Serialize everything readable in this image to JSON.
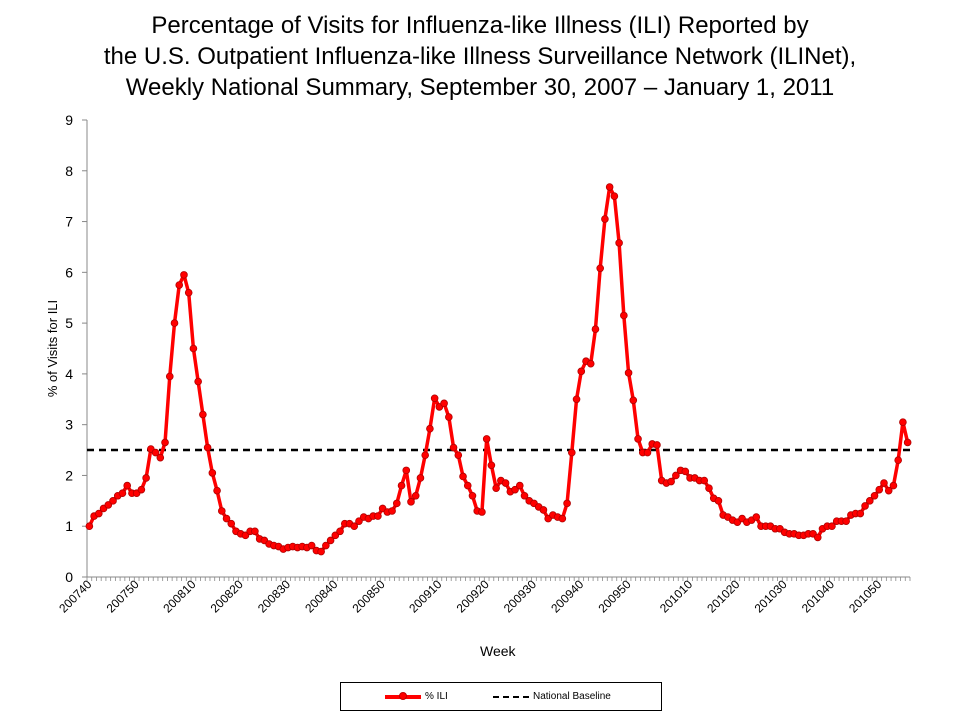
{
  "title_lines": [
    "Percentage of Visits for Influenza-like Illness (ILI) Reported by",
    "the U.S. Outpatient Influenza-like Illness Surveillance Network (ILINet),",
    "Weekly National Summary, September 30, 2007 – January 1, 2011"
  ],
  "colors": {
    "ili": "#ff0000",
    "baseline": "#000000"
  },
  "chart_data": {
    "type": "line",
    "xlabel": "Week",
    "ylabel": "% of Visits for ILI",
    "ylim": [
      0,
      9
    ],
    "yticks": [
      0,
      1,
      2,
      3,
      4,
      5,
      6,
      7,
      8,
      9
    ],
    "tick_labels": [
      "200740",
      "200750",
      "200810",
      "200820",
      "200830",
      "200840",
      "200850",
      "200910",
      "200920",
      "200930",
      "200940",
      "200950",
      "201010",
      "201020",
      "201030",
      "201040",
      "201050"
    ],
    "tick_label_indices": [
      0,
      10,
      22,
      32,
      42,
      52,
      62,
      74,
      84,
      94,
      104,
      114,
      127,
      137,
      147,
      157,
      167
    ],
    "grid": false,
    "legend_position": "bottom",
    "baseline": {
      "name": "National Baseline",
      "value": 2.5
    },
    "series": [
      {
        "name": "% ILI",
        "values": [
          1.0,
          1.2,
          1.25,
          1.35,
          1.42,
          1.5,
          1.6,
          1.65,
          1.8,
          1.65,
          1.65,
          1.72,
          1.95,
          2.52,
          2.45,
          2.35,
          2.65,
          3.95,
          5.0,
          5.75,
          5.95,
          5.6,
          4.5,
          3.85,
          3.2,
          2.55,
          2.05,
          1.7,
          1.3,
          1.15,
          1.05,
          0.9,
          0.85,
          0.82,
          0.9,
          0.9,
          0.75,
          0.72,
          0.65,
          0.62,
          0.6,
          0.55,
          0.58,
          0.6,
          0.58,
          0.6,
          0.58,
          0.62,
          0.52,
          0.5,
          0.62,
          0.72,
          0.82,
          0.9,
          1.05,
          1.05,
          1.0,
          1.1,
          1.18,
          1.15,
          1.2,
          1.2,
          1.35,
          1.28,
          1.3,
          1.45,
          1.8,
          2.1,
          1.48,
          1.6,
          1.95,
          2.4,
          2.92,
          3.52,
          3.35,
          3.42,
          3.15,
          2.55,
          2.4,
          1.98,
          1.8,
          1.6,
          1.3,
          1.28,
          2.72,
          2.2,
          1.75,
          1.9,
          1.85,
          1.68,
          1.72,
          1.8,
          1.6,
          1.5,
          1.45,
          1.38,
          1.32,
          1.15,
          1.22,
          1.18,
          1.15,
          1.45,
          2.45,
          3.5,
          4.05,
          4.25,
          4.2,
          4.88,
          6.08,
          7.05,
          7.68,
          7.5,
          6.58,
          5.15,
          4.02,
          3.48,
          2.72,
          2.45,
          2.45,
          2.62,
          2.6,
          1.9,
          1.85,
          1.88,
          2.0,
          2.1,
          2.08,
          1.95,
          1.95,
          1.9,
          1.9,
          1.75,
          1.55,
          1.5,
          1.22,
          1.18,
          1.12,
          1.08,
          1.15,
          1.08,
          1.12,
          1.18,
          1.0,
          1.0,
          1.0,
          0.95,
          0.95,
          0.88,
          0.85,
          0.85,
          0.82,
          0.82,
          0.85,
          0.85,
          0.78,
          0.95,
          1.0,
          1.0,
          1.1,
          1.1,
          1.1,
          1.22,
          1.25,
          1.25,
          1.4,
          1.5,
          1.6,
          1.72,
          1.85,
          1.7,
          1.8,
          2.3,
          3.05,
          2.65
        ]
      }
    ]
  }
}
